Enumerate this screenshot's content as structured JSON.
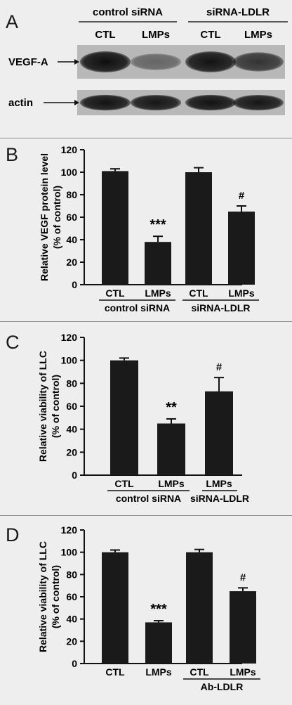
{
  "panels": {
    "A": {
      "letter": "A",
      "groups": [
        "control siRNA",
        "siRNA-LDLR"
      ],
      "lanes": [
        "CTL",
        "LMPs",
        "CTL",
        "LMPs"
      ],
      "rows": [
        {
          "label": "VEGF-A",
          "intensity": [
            0.92,
            0.45,
            0.9,
            0.72
          ]
        },
        {
          "label": "actin",
          "intensity": [
            0.9,
            0.88,
            0.9,
            0.88
          ]
        }
      ]
    },
    "B": {
      "letter": "B"
    },
    "C": {
      "letter": "C"
    },
    "D": {
      "letter": "D"
    }
  },
  "chart_data": [
    {
      "panel": "B",
      "type": "bar",
      "ylabel": [
        "Relative VEGF protein level",
        "(% of control)"
      ],
      "ylim": [
        0,
        120
      ],
      "yticks": [
        0,
        20,
        40,
        60,
        80,
        100,
        120
      ],
      "categories": [
        "CTL",
        "LMPs",
        "CTL",
        "LMPs"
      ],
      "values": [
        101,
        38,
        100,
        65
      ],
      "errors": [
        2,
        5,
        4,
        5
      ],
      "annotations": [
        "",
        "***",
        "",
        "#"
      ],
      "groups": [
        {
          "label": "control siRNA",
          "from": 0,
          "to": 1
        },
        {
          "label": "siRNA-LDLR",
          "from": 2,
          "to": 3
        }
      ],
      "color": "#1a1a1a"
    },
    {
      "panel": "C",
      "type": "bar",
      "ylabel": [
        "Relative viability of LLC",
        "(% of control)"
      ],
      "ylim": [
        0,
        120
      ],
      "yticks": [
        0,
        20,
        40,
        60,
        80,
        100,
        120
      ],
      "categories": [
        "CTL",
        "LMPs",
        "LMPs"
      ],
      "values": [
        100,
        45,
        73
      ],
      "errors": [
        2,
        4,
        12
      ],
      "annotations": [
        "",
        "**",
        "#"
      ],
      "groups": [
        {
          "label": "control siRNA",
          "from": 0,
          "to": 1
        },
        {
          "label": "siRNA-LDLR",
          "from": 2,
          "to": 2
        }
      ],
      "color": "#1a1a1a"
    },
    {
      "panel": "D",
      "type": "bar",
      "ylabel": [
        "Relative viability of LLC",
        "(% of control)"
      ],
      "ylim": [
        0,
        120
      ],
      "yticks": [
        0,
        20,
        40,
        60,
        80,
        100,
        120
      ],
      "categories": [
        "CTL",
        "LMPs",
        "CTL",
        "LMPs"
      ],
      "values": [
        100,
        37,
        100,
        65
      ],
      "errors": [
        2,
        1.5,
        2.5,
        3
      ],
      "annotations": [
        "",
        "***",
        "",
        "#"
      ],
      "groups": [
        {
          "label": "Ab-LDLR",
          "from": 2,
          "to": 3
        }
      ],
      "color": "#1a1a1a"
    }
  ]
}
